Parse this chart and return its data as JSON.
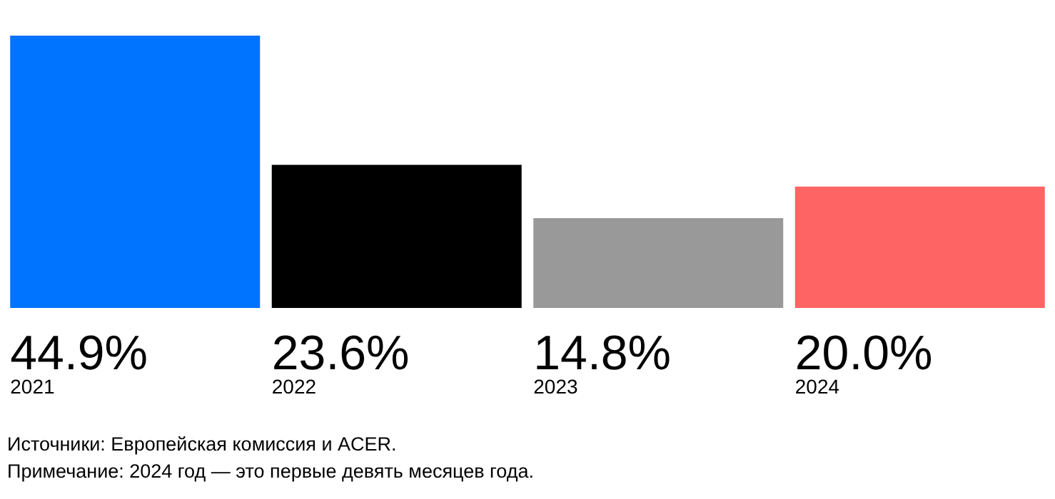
{
  "chart_data": {
    "type": "bar",
    "categories": [
      "2021",
      "2022",
      "2023",
      "2024"
    ],
    "values": [
      44.9,
      23.6,
      14.8,
      20.0
    ],
    "colors": [
      "#0073ff",
      "#000000",
      "#999999",
      "#ff6464"
    ],
    "value_labels": [
      "44.9%",
      "23.6%",
      "14.8%",
      "20.0%"
    ],
    "annotations": [
      "Источники: Европейская комиссия и ACER.",
      "Примечание: 2024 год — это первые девять месяцев года."
    ]
  }
}
